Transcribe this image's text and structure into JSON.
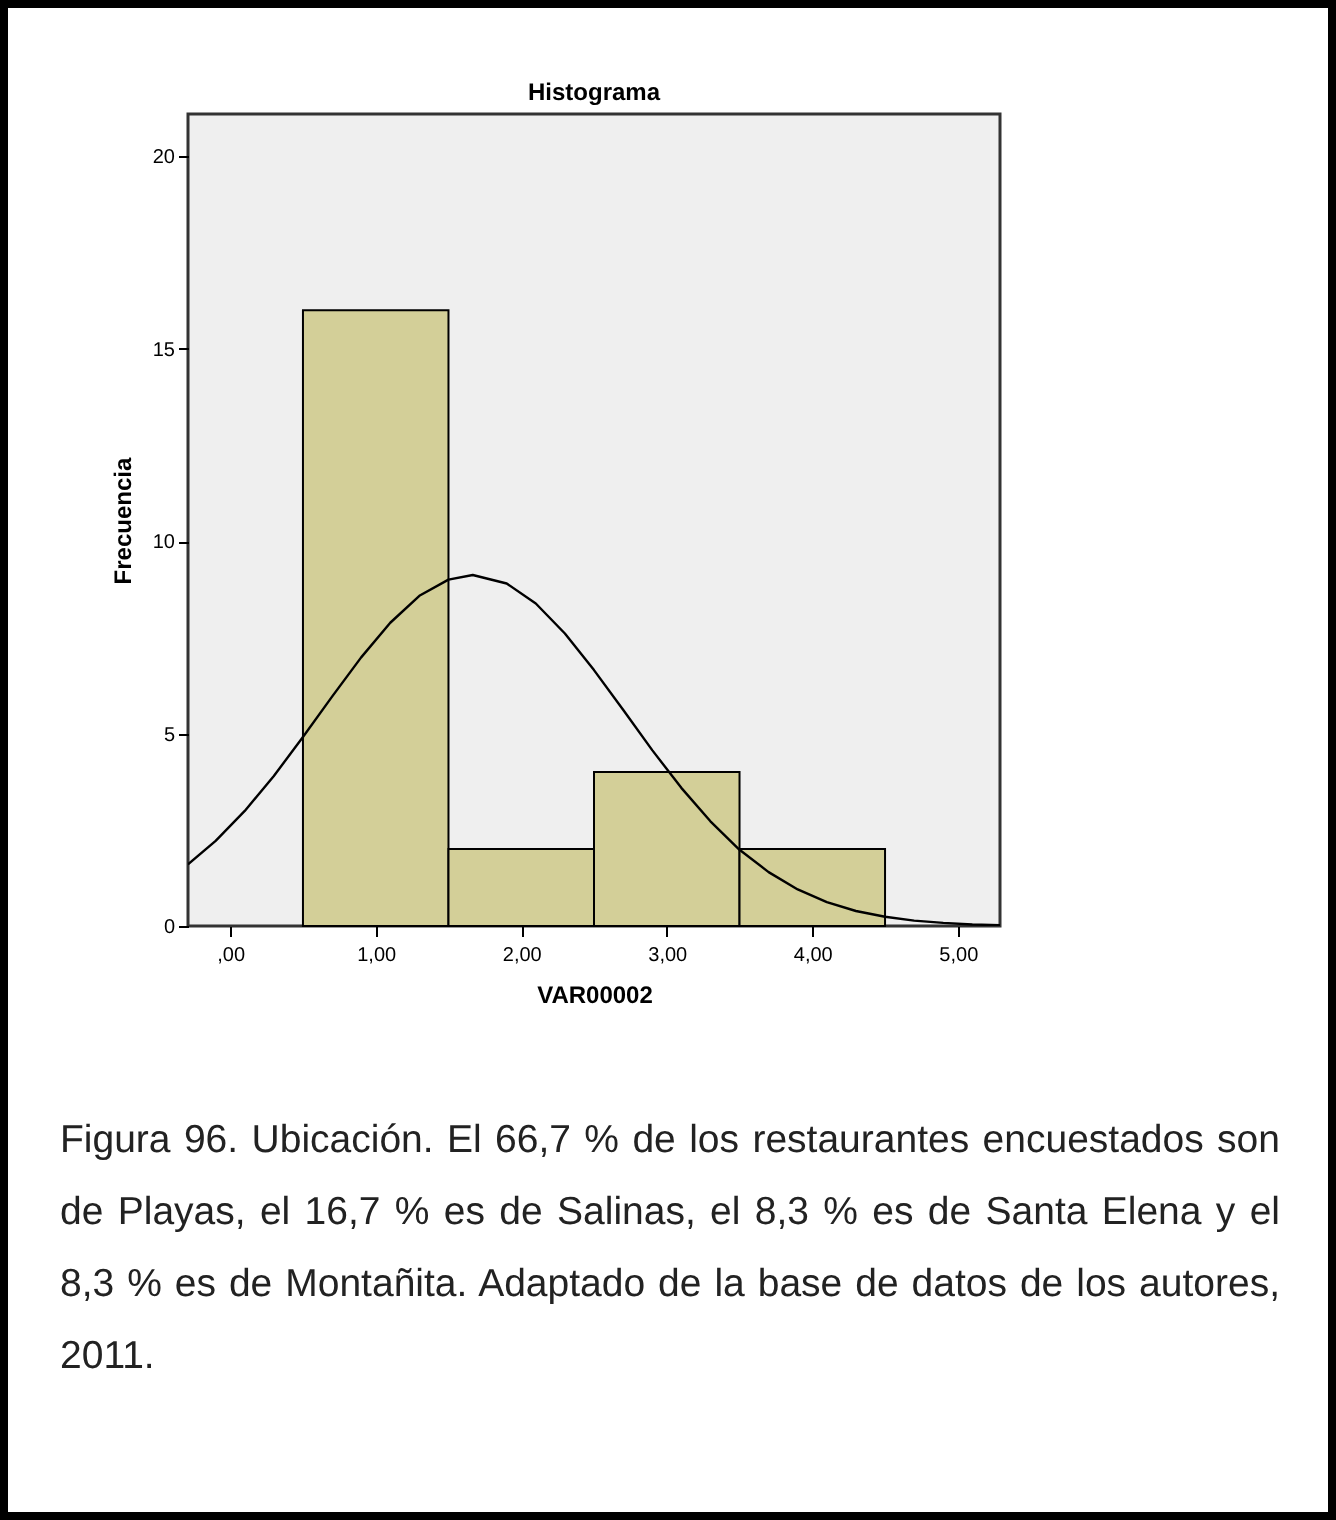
{
  "chart_data": {
    "type": "histogram",
    "title": "Histograma",
    "xlabel": "VAR00002",
    "ylabel": "Frecuencia",
    "bins": [
      0.5,
      1.5,
      2.5,
      3.5,
      4.5
    ],
    "values": [
      16,
      2,
      4,
      2
    ],
    "color": "#d3cf98",
    "series": [
      {
        "type": "line",
        "color": "#000000",
        "x": [
          -0.29,
          -0.1,
          0.1,
          0.3,
          0.5,
          0.7,
          0.9,
          1.1,
          1.3,
          1.5,
          1.667,
          1.9,
          2.1,
          2.3,
          2.5,
          2.7,
          2.9,
          3.1,
          3.3,
          3.5,
          3.7,
          3.9,
          4.1,
          4.3,
          4.5,
          4.7,
          4.9,
          5.1,
          5.29
        ],
        "values": [
          1.6,
          2.21,
          2.99,
          3.9,
          4.91,
          5.96,
          6.98,
          7.88,
          8.58,
          9.0,
          9.12,
          8.9,
          8.38,
          7.6,
          6.65,
          5.62,
          4.57,
          3.59,
          2.72,
          1.98,
          1.4,
          0.95,
          0.62,
          0.39,
          0.24,
          0.14,
          0.08,
          0.04,
          0.02
        ]
      }
    ],
    "xlim": [
      -0.29,
      5.29
    ],
    "xticks": [
      {
        "value": 0,
        "label": ",00"
      },
      {
        "value": 1,
        "label": "1,00"
      },
      {
        "value": 2,
        "label": "2,00"
      },
      {
        "value": 3,
        "label": "3,00"
      },
      {
        "value": 4,
        "label": "4,00"
      },
      {
        "value": 5,
        "label": "5,00"
      }
    ],
    "ylim": [
      0,
      21.1
    ],
    "yticks": [
      0,
      5,
      10,
      15,
      20
    ],
    "grid": false,
    "annotations": [
      "Figura 96. Ubicación. El 66,7 % de los restaurantes encuestados son de Playas, el 16,7 % es de Salinas, el 8,3 % es de Santa Elena y el 8,3 % es de Montañita. Adaptado de la base de datos de los autores, 2011."
    ]
  }
}
